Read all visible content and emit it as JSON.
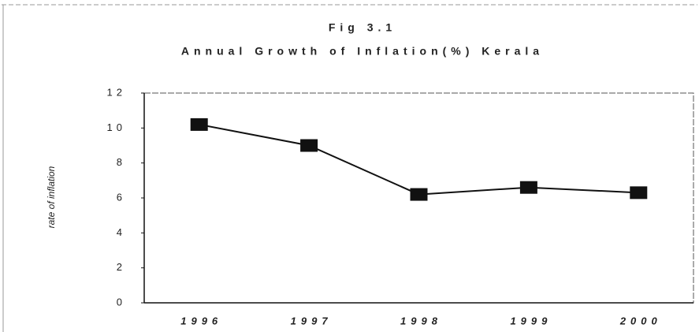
{
  "chart_data": {
    "type": "line",
    "title": "Fig 3.1",
    "subtitle": "Annual Growth of Inflation(%) Kerala",
    "y_label": "rate of inflation",
    "categories": [
      "1996",
      "1997",
      "1998",
      "1999",
      "2000"
    ],
    "values": [
      10.2,
      9.0,
      6.2,
      6.6,
      6.3
    ],
    "color": "#111111",
    "ylim": [
      0,
      12
    ],
    "yticks": [
      0,
      2,
      4,
      6,
      8,
      10,
      12
    ],
    "grid": false
  }
}
